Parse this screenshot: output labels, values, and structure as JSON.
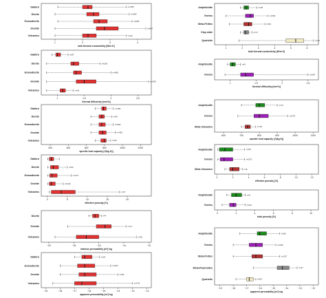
{
  "chart_data": [
    {
      "type": "boxplot",
      "column": "left",
      "xlabel": "bulk thermal conductivity [W/m K]",
      "xlim": [
        0.5,
        4.5
      ],
      "ticks": [
        1,
        2,
        3,
        4
      ],
      "colors": [
        "#e03030"
      ],
      "rows": [
        {
          "cat": "Gabbro",
          "n": "n=155",
          "min": 1.1,
          "q1": 2.0,
          "med": 2.2,
          "q3": 2.35,
          "max": 3.6
        },
        {
          "cat": "Diorite",
          "n": "n=259",
          "min": 1.0,
          "q1": 2.15,
          "med": 2.4,
          "q3": 2.6,
          "max": 3.7
        },
        {
          "cat": "Granodiorite",
          "n": "n=655",
          "min": 1.1,
          "q1": 2.4,
          "med": 2.6,
          "q3": 2.9,
          "max": 3.8
        },
        {
          "cat": "Granite",
          "n": "n=897",
          "min": 1.0,
          "q1": 2.5,
          "med": 2.8,
          "q3": 3.3,
          "max": 4.3
        },
        {
          "cat": "Volcanics",
          "n": "n=94",
          "min": 1.0,
          "q1": 2.0,
          "med": 2.2,
          "q3": 2.5,
          "max": 3.6
        }
      ]
    },
    {
      "type": "boxplot",
      "column": "left",
      "xlabel": "thermal diffusivity [mm²/s]",
      "xlim": [
        0.7,
        2.75
      ],
      "ticks": [
        1.0,
        1.5,
        2.0,
        2.5
      ],
      "colors": [
        "#e03030"
      ],
      "rows": [
        {
          "cat": "Gabbro",
          "n": "n=87",
          "min": 0.9,
          "q1": 0.97,
          "med": 1.0,
          "q3": 1.06,
          "max": 1.2
        },
        {
          "cat": "Diorite",
          "n": "n=203",
          "min": 0.8,
          "q1": 1.25,
          "med": 1.3,
          "q3": 1.4,
          "max": 1.8
        },
        {
          "cat": "Granodiorite",
          "n": "n=450",
          "min": 0.8,
          "q1": 1.3,
          "med": 1.35,
          "q3": 1.45,
          "max": 2.0
        },
        {
          "cat": "Granite",
          "n": "n=339",
          "min": 0.8,
          "q1": 1.35,
          "med": 1.5,
          "q3": 1.72,
          "max": 2.7
        },
        {
          "cat": "Volcanics",
          "n": "n=51",
          "min": 0.8,
          "q1": 1.05,
          "med": 1.1,
          "q3": 1.15,
          "max": 1.3
        }
      ]
    },
    {
      "type": "boxplot",
      "column": "left",
      "xlabel": "specific heat capacity [J/(kg K)]",
      "xlim": [
        100,
        1320
      ],
      "ticks": [
        200,
        400,
        600,
        800,
        1000,
        1200
      ],
      "colors": [
        "#e03030"
      ],
      "rows": [
        {
          "cat": "Gabbro",
          "n": "n=155",
          "min": 700,
          "q1": 770,
          "med": 790,
          "q3": 820,
          "max": 900
        },
        {
          "cat": "Diorite",
          "n": "n=87",
          "min": 650,
          "q1": 740,
          "med": 770,
          "q3": 800,
          "max": 880
        },
        {
          "cat": "Granodiorite",
          "n": "n=529",
          "min": 650,
          "q1": 740,
          "med": 770,
          "q3": 810,
          "max": 900
        },
        {
          "cat": "Granite",
          "n": "n=425",
          "min": 650,
          "q1": 740,
          "med": 780,
          "q3": 820,
          "max": 920
        },
        {
          "cat": "Volcanics",
          "n": "n=46",
          "min": 700,
          "q1": 760,
          "med": 800,
          "q3": 820,
          "max": 870
        }
      ]
    },
    {
      "type": "boxplot",
      "column": "left",
      "xlabel": "effective porosity [%]",
      "xlim": [
        -1.5,
        26
      ],
      "ticks": [
        0,
        5,
        10,
        15,
        20
      ],
      "colors": [
        "#e03030"
      ],
      "rows": [
        {
          "cat": "Gabbro",
          "n": "",
          "min": 0.1,
          "q1": 0.5,
          "med": 1.0,
          "q3": 1.6,
          "max": 3.0
        },
        {
          "cat": "Diorite",
          "n": "n=93",
          "min": 0.1,
          "q1": 0.8,
          "med": 1.5,
          "q3": 2.8,
          "max": 5.0
        },
        {
          "cat": "Granodiorite",
          "n": "n=271",
          "min": 0.1,
          "q1": 0.6,
          "med": 1.2,
          "q3": 2.5,
          "max": 6.0
        },
        {
          "cat": "Granite",
          "n": "n=242",
          "min": 0.1,
          "q1": 0.5,
          "med": 1.0,
          "q3": 2.0,
          "max": 4.0
        },
        {
          "cat": "Volcanics",
          "n": "n=47",
          "min": 0.5,
          "q1": 1.0,
          "med": 3.5,
          "q3": 7.0,
          "max": 18.0
        }
      ]
    },
    {
      "type": "boxplot",
      "column": "left",
      "xlabel": "intrinsic permeability [m²] log",
      "xlim": [
        -20.6,
        -11.8
      ],
      "ticks": [
        -20,
        -18,
        -16,
        -14,
        -12
      ],
      "colors": [
        "#e03030"
      ],
      "rows": [
        {
          "cat": "Diorite",
          "n": "n=4",
          "min": -16.8,
          "q1": -16.5,
          "med": -16.3,
          "q3": -16.0,
          "max": -15.8
        },
        {
          "cat": "Granite",
          "n": "n=17",
          "min": -18.5,
          "q1": -16.2,
          "med": -15.5,
          "q3": -15.0,
          "max": -13.8
        },
        {
          "cat": "Volcanics",
          "n": "n=33",
          "min": -19.5,
          "q1": -17.8,
          "med": -17.0,
          "q3": -16.0,
          "max": -13.0
        }
      ]
    },
    {
      "type": "boxplot",
      "column": "left",
      "xlabel": "apparent permeability [m²] log",
      "xlim": [
        -19.3,
        -11.7
      ],
      "ticks": [
        -19,
        -18,
        -17,
        -16,
        -15,
        -14,
        -13,
        -12
      ],
      "colors": [
        "#e03030"
      ],
      "rows": [
        {
          "cat": "Gabbro",
          "n": "n=18",
          "min": -17.0,
          "q1": -16.5,
          "med": -16.3,
          "q3": -15.8,
          "max": -15.3
        },
        {
          "cat": "Granodiorite",
          "n": "n=240",
          "min": -18.0,
          "q1": -16.8,
          "med": -16.3,
          "q3": -15.6,
          "max": -14.5
        },
        {
          "cat": "Granite",
          "n": "n=56",
          "min": -18.0,
          "q1": -16.7,
          "med": -16.3,
          "q3": -15.5,
          "max": -14.0
        },
        {
          "cat": "Volcanics",
          "n": "n=178",
          "min": -18.5,
          "q1": -17.0,
          "med": -16.5,
          "q3": -15.5,
          "max": -13.0
        }
      ]
    },
    {
      "type": "boxplot",
      "column": "right",
      "xlabel": "bulk thermal conductivity [W/m K]",
      "xlim": [
        0.3,
        6.7
      ],
      "ticks": [
        1,
        2,
        3,
        4,
        5,
        6
      ],
      "colors": [
        "#1a8a1a",
        "#9b1fb5",
        "#b23030",
        "#888888",
        "#f3ecc4"
      ],
      "rows": [
        {
          "cat": "Amphibolite",
          "n": "n=18",
          "min": 1.9,
          "q1": 2.1,
          "med": 2.25,
          "q3": 2.4,
          "max": 2.9,
          "color": "#1a8a1a"
        },
        {
          "cat": "Gneiss",
          "n": "n=264",
          "min": 1.0,
          "q1": 2.2,
          "med": 2.5,
          "q3": 2.7,
          "max": 3.6,
          "color": "#9b1fb5"
        },
        {
          "cat": "Meta-Pelites",
          "n": "n=56",
          "min": 1.2,
          "q1": 2.1,
          "med": 2.4,
          "q3": 2.6,
          "max": 3.4,
          "color": "#b23030"
        },
        {
          "cat": "Clay-slate",
          "n": "n=17",
          "min": 1.9,
          "q1": 2.1,
          "med": 2.2,
          "q3": 2.4,
          "max": 2.6,
          "color": "#888888"
        },
        {
          "cat": "Quartzite",
          "n": "n=40",
          "min": 1.8,
          "q1": 4.7,
          "med": 5.3,
          "q3": 5.8,
          "max": 6.4,
          "color": "#f3ecc4"
        }
      ]
    },
    {
      "type": "boxplot",
      "column": "right",
      "xlabel": "thermal diffusivity [mm²/s]",
      "xlim": [
        0.7,
        2.7
      ],
      "ticks": [
        1.0,
        1.5,
        2.0,
        2.5
      ],
      "colors": [
        "#1a8a1a",
        "#9b1fb5"
      ],
      "rows": [
        {
          "cat": "Amphibolite",
          "n": "n=6",
          "min": 0.95,
          "q1": 1.0,
          "med": 1.05,
          "q3": 1.1,
          "max": 1.2,
          "color": "#1a8a1a"
        },
        {
          "cat": "Gneiss",
          "n": "n=267",
          "min": 0.9,
          "q1": 1.2,
          "med": 1.3,
          "q3": 1.45,
          "max": 2.5,
          "color": "#9b1fb5"
        }
      ]
    },
    {
      "type": "boxplot",
      "column": "right",
      "xlabel": "specific heat capacity [J/(kg K)]",
      "xlim": [
        550,
        1130
      ],
      "ticks": [
        600,
        700,
        800,
        900,
        1000,
        1100
      ],
      "colors": [
        "#1a8a1a",
        "#9b1fb5",
        "#b23030"
      ],
      "rows": [
        {
          "cat": "Amphibolite",
          "n": "n=74",
          "min": 700,
          "q1": 780,
          "med": 800,
          "q3": 830,
          "max": 900,
          "color": "#1a8a1a"
        },
        {
          "cat": "Gneiss",
          "n": "n=274",
          "min": 680,
          "q1": 770,
          "med": 800,
          "q3": 850,
          "max": 960,
          "color": "#9b1fb5"
        },
        {
          "cat": "Meta-Volcanics",
          "n": "n=18",
          "min": 700,
          "q1": 720,
          "med": 735,
          "q3": 750,
          "max": 780,
          "color": "#b23030"
        }
      ]
    },
    {
      "type": "boxplot",
      "column": "right",
      "xlabel": "effective porosity [%]",
      "xlim": [
        -0.3,
        12.8
      ],
      "ticks": [
        0,
        2,
        4,
        6,
        8,
        10,
        12
      ],
      "colors": [
        "#1a8a1a",
        "#9b1fb5",
        "#b23030"
      ],
      "rows": [
        {
          "cat": "Amphibolite",
          "n": "n=69",
          "min": 0.1,
          "q1": 0.3,
          "med": 1.0,
          "q3": 2.0,
          "max": 3.5,
          "color": "#1a8a1a"
        },
        {
          "cat": "Gneiss",
          "n": "n=237",
          "min": 0.1,
          "q1": 0.4,
          "med": 0.9,
          "q3": 2.0,
          "max": 3.5,
          "color": "#9b1fb5"
        },
        {
          "cat": "Meta-Volcanics",
          "n": "n=8",
          "min": 1.0,
          "q1": 1.6,
          "med": 2.0,
          "q3": 2.8,
          "max": 3.2,
          "color": "#b23030"
        }
      ]
    },
    {
      "type": "boxplot",
      "column": "right",
      "xlabel": "total porosity [%]",
      "xlim": [
        -0.3,
        10.8
      ],
      "ticks": [
        0,
        2,
        4,
        6,
        8,
        10
      ],
      "colors": [
        "#1a8a1a",
        "#9b1fb5"
      ],
      "rows": [
        {
          "cat": "Amphibolite",
          "n": "n=5",
          "min": 1.0,
          "q1": 1.5,
          "med": 2.0,
          "q3": 2.6,
          "max": 3.0,
          "color": "#1a8a1a"
        },
        {
          "cat": "Gneiss",
          "n": "n=60",
          "min": 0.5,
          "q1": 1.3,
          "med": 1.7,
          "q3": 2.0,
          "max": 3.0,
          "color": "#9b1fb5"
        }
      ]
    },
    {
      "type": "boxplot",
      "column": "right",
      "xlabel": "apparent permeability [m²] log",
      "xlim": [
        -19.4,
        -11.6
      ],
      "ticks": [
        -19,
        -18,
        -17,
        -16,
        -15,
        -14,
        -13,
        -12
      ],
      "colors": [
        "#1a8a1a",
        "#9b1fb5",
        "#b23030",
        "#888888",
        "#f3ecc4"
      ],
      "rows": [
        {
          "cat": "Amphibolite",
          "n": "n=55",
          "min": -17.5,
          "q1": -16.2,
          "med": -16.0,
          "q3": -15.5,
          "max": -14.5,
          "color": "#1a8a1a"
        },
        {
          "cat": "Gneiss",
          "n": "n=245",
          "min": -18.0,
          "q1": -16.8,
          "med": -16.3,
          "q3": -15.8,
          "max": -14.8,
          "color": "#9b1fb5"
        },
        {
          "cat": "Meta-Pelites",
          "n": "n=127",
          "min": -18.0,
          "q1": -16.6,
          "med": -16.3,
          "q3": -15.8,
          "max": -14.5,
          "color": "#b23030"
        },
        {
          "cat": "Meta-Psammites",
          "n": "n=47",
          "min": -16.5,
          "q1": -14.7,
          "med": -14.3,
          "q3": -13.8,
          "max": -13.2,
          "color": "#888888"
        },
        {
          "cat": "Quartzite",
          "n": "n=25",
          "min": -17.8,
          "q1": -17.0,
          "med": -16.8,
          "q3": -16.5,
          "max": -16.3,
          "color": "#f3ecc4"
        }
      ]
    }
  ]
}
